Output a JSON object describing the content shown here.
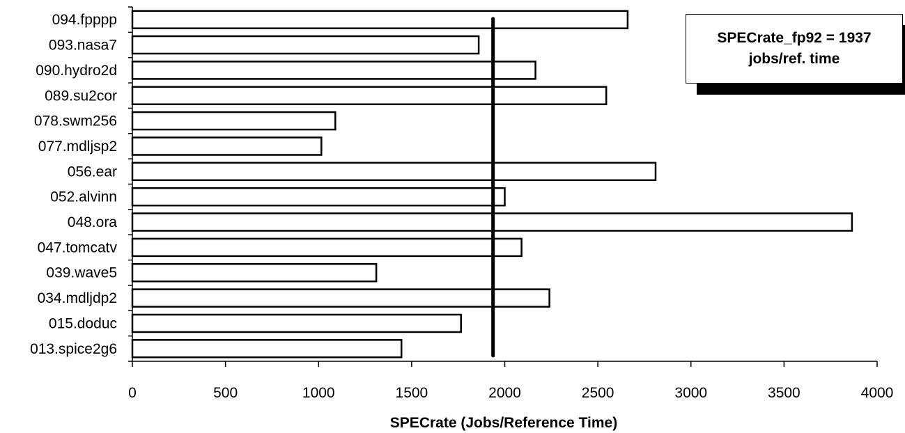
{
  "chart_data": {
    "type": "bar",
    "orientation": "horizontal",
    "categories": [
      "094.fpppp",
      "093.nasa7",
      "090.hydro2d",
      "089.su2cor",
      "078.swm256",
      "077.mdljsp2",
      "056.ear",
      "052.alvinn",
      "048.ora",
      "047.tomcatv",
      "039.wave5",
      "034.mdljdp2",
      "015.doduc",
      "013.spice2g6"
    ],
    "values": [
      2660,
      1860,
      2165,
      2545,
      1090,
      1015,
      2810,
      2000,
      3865,
      2090,
      1310,
      2240,
      1765,
      1445
    ],
    "xlabel": "SPECrate (Jobs/Reference Time)",
    "ylabel": "",
    "xlim": [
      0,
      4000
    ],
    "xticks": [
      0,
      500,
      1000,
      1500,
      2000,
      2500,
      3000,
      3500,
      4000
    ],
    "reference_line": {
      "value": 1937
    },
    "annotation": {
      "line1": "SPECrate_fp92 = 1937",
      "line2": "jobs/ref. time",
      "position": "top-right"
    },
    "grid": false,
    "legend": "none",
    "colors": {
      "bar_fill": "#ffffff",
      "bar_stroke": "#000000",
      "reference_line": "#000000"
    }
  }
}
